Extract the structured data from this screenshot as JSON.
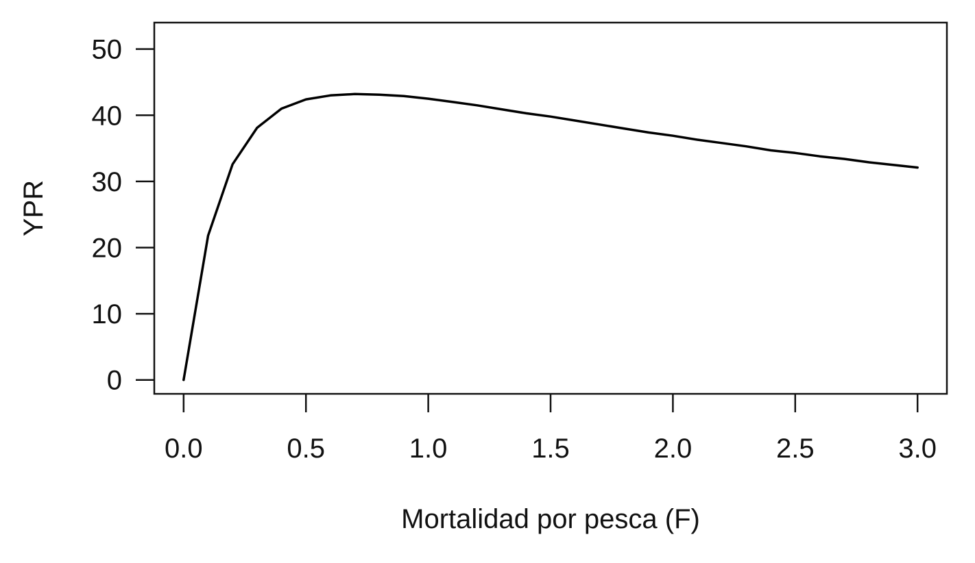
{
  "chart_data": {
    "type": "line",
    "title": "",
    "xlabel": "Mortalidad por pesca (F)",
    "ylabel": "YPR",
    "xlim": [
      -0.12,
      3.12
    ],
    "ylim": [
      -2.1,
      54.0
    ],
    "grid": false,
    "legend": "none",
    "line_color": "#000000",
    "xticks": [
      0.0,
      0.5,
      1.0,
      1.5,
      2.0,
      2.5,
      3.0
    ],
    "xtick_labels": [
      "0.0",
      "0.5",
      "1.0",
      "1.5",
      "2.0",
      "2.5",
      "3.0"
    ],
    "yticks": [
      0,
      10,
      20,
      30,
      40,
      50
    ],
    "ytick_labels": [
      "0",
      "10",
      "20",
      "30",
      "40",
      "50"
    ],
    "series": [
      {
        "x": [
          0.0,
          0.1,
          0.2,
          0.3,
          0.4,
          0.5,
          0.6,
          0.7,
          0.8,
          0.9,
          1.0,
          1.1,
          1.2,
          1.3,
          1.4,
          1.5,
          1.6,
          1.7,
          1.8,
          1.9,
          2.0,
          2.1,
          2.2,
          2.3,
          2.4,
          2.5,
          2.6,
          2.7,
          2.8,
          2.9,
          3.0
        ],
        "y": [
          0.0,
          21.8,
          32.6,
          38.1,
          41.0,
          42.4,
          43.0,
          43.2,
          43.1,
          42.9,
          42.5,
          42.0,
          41.5,
          40.9,
          40.3,
          39.8,
          39.2,
          38.6,
          38.0,
          37.4,
          36.9,
          36.3,
          35.8,
          35.3,
          34.7,
          34.3,
          33.8,
          33.4,
          32.9,
          32.5,
          32.1
        ]
      }
    ]
  }
}
